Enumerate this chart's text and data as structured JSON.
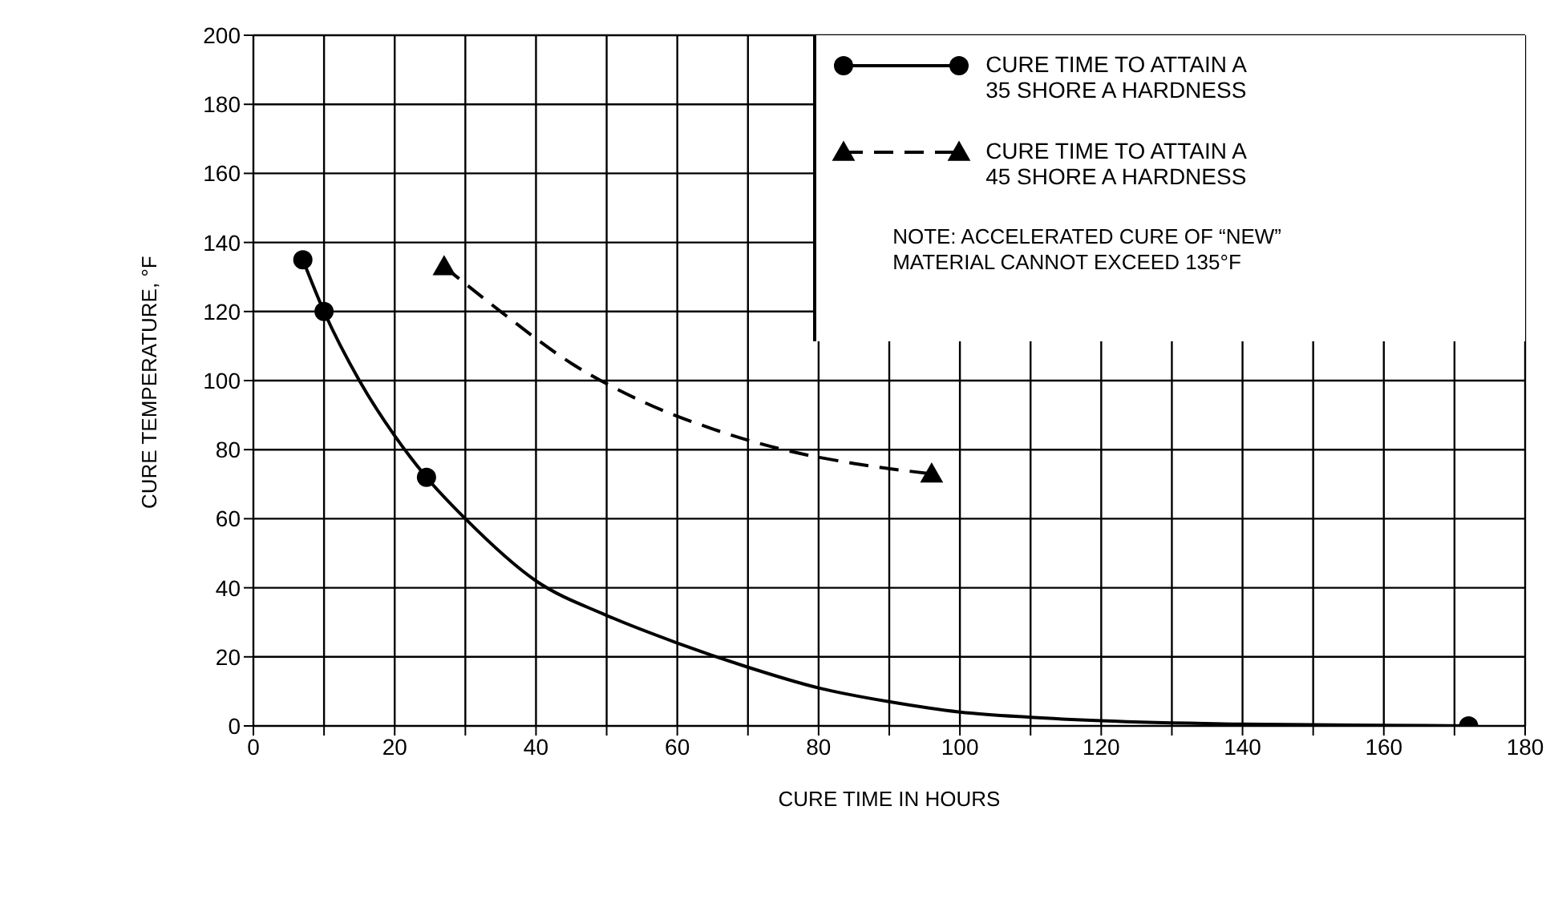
{
  "chart_data": {
    "type": "line",
    "xlabel": "CURE TIME IN HOURS",
    "ylabel": "CURE TEMPERATURE, °F",
    "xlim": [
      0,
      180
    ],
    "ylim": [
      0,
      200
    ],
    "xticks": [
      0,
      {
        "value": 10,
        "label": null
      },
      20,
      {
        "value": 30,
        "label": null
      },
      40,
      {
        "value": 50,
        "label": null
      },
      60,
      {
        "value": 70,
        "label": null
      },
      80,
      {
        "value": 90,
        "label": null
      },
      100,
      {
        "value": 110,
        "label": null
      },
      120,
      {
        "value": 130,
        "label": null
      },
      140,
      {
        "value": 150,
        "label": null
      },
      160,
      {
        "value": 170,
        "label": null
      },
      180
    ],
    "yticks": [
      0,
      20,
      40,
      60,
      80,
      100,
      120,
      140,
      160,
      180,
      200
    ],
    "grid": true,
    "legend": "top right",
    "annotations": [
      "NOTE: ACCELERATED CURE OF “NEW” MATERIAL CANNOT EXCEED 135°F"
    ],
    "series": [
      {
        "name": "CURE TIME TO ATTAIN A 35 SHORE A HARDNESS",
        "color": "#000000",
        "line_style": "solid",
        "x": [
          7,
          10,
          15,
          20,
          24.5,
          30,
          40,
          50,
          60,
          70,
          80,
          90,
          100,
          110,
          120,
          140,
          160,
          172
        ],
        "values": [
          135,
          120,
          100,
          84,
          72,
          60,
          42,
          32,
          24,
          17,
          11,
          7,
          4,
          2.5,
          1.5,
          0.5,
          0.2,
          0
        ]
      },
      {
        "type": "scatter",
        "color": "#000000",
        "marker": "circle",
        "x": [
          7,
          10,
          24.5,
          172
        ],
        "values": [
          135,
          120,
          72,
          0
        ]
      },
      {
        "name": "CURE TIME TO ATTAIN A 45 SHORE A HARDNESS",
        "color": "#000000",
        "line_style": "dashed",
        "x": [
          27,
          35,
          45,
          55,
          65,
          75,
          85,
          96
        ],
        "values": [
          133,
          120,
          105,
          94,
          86,
          80,
          76,
          73
        ]
      },
      {
        "type": "scatter",
        "color": "#000000",
        "marker": "triangle",
        "x": [
          27,
          96
        ],
        "values": [
          133,
          73
        ]
      }
    ]
  }
}
